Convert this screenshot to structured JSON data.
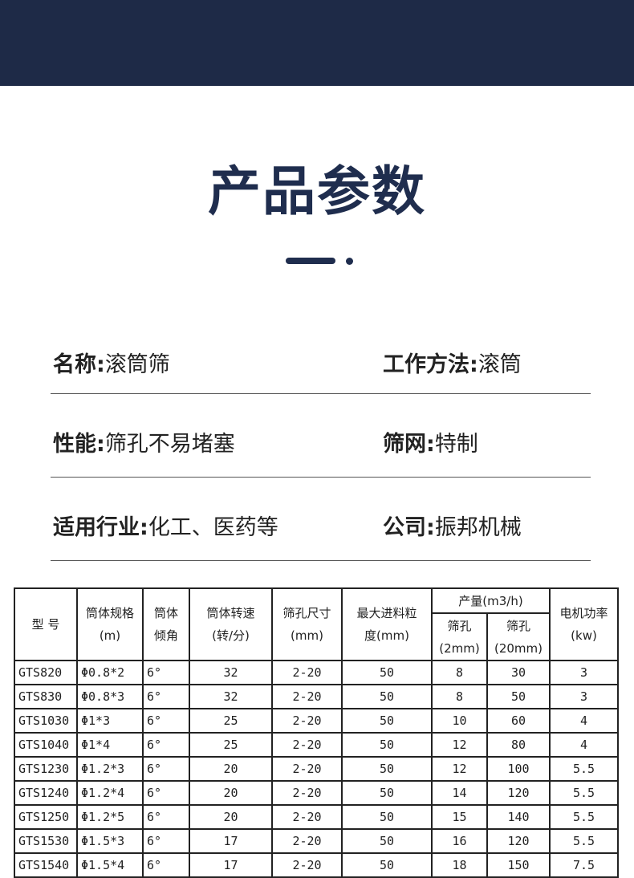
{
  "title": "产品参数",
  "info": [
    {
      "label": "名称:",
      "value": "滚筒筛"
    },
    {
      "label": "工作方法:",
      "value": "滚筒"
    },
    {
      "label": "性能:",
      "value": "筛孔不易堵塞"
    },
    {
      "label": "筛网:",
      "value": "特制"
    },
    {
      "label": "适用行业:",
      "value": "化工、医药等"
    },
    {
      "label": "公司:",
      "value": "振邦机械"
    }
  ],
  "table": {
    "headers": {
      "model": "型 号",
      "spec1": "筒体规格",
      "spec2": "(m)",
      "angle1": "筒体",
      "angle2": "倾角",
      "speed1": "筒体转速",
      "speed2": "(转/分)",
      "hole1": "筛孔尺寸",
      "hole2": "(mm)",
      "feed1": "最大进料粒",
      "feed2": "度(mm)",
      "output": "产量(m3/h)",
      "o1a": "筛孔",
      "o1b": "(2mm)",
      "o2a": "筛孔",
      "o2b": "(20mm)",
      "power1": "电机功率",
      "power2": "(kw)"
    },
    "rows": [
      [
        "GTS820",
        "Φ0.8*2",
        "6°",
        "32",
        "2-20",
        "50",
        "8",
        "30",
        "3"
      ],
      [
        "GTS830",
        "Φ0.8*3",
        "6°",
        "32",
        "2-20",
        "50",
        "8",
        "50",
        "3"
      ],
      [
        "GTS1030",
        "Φ1*3",
        "6°",
        "25",
        "2-20",
        "50",
        "10",
        "60",
        "4"
      ],
      [
        "GTS1040",
        "Φ1*4",
        "6°",
        "25",
        "2-20",
        "50",
        "12",
        "80",
        "4"
      ],
      [
        "GTS1230",
        "Φ1.2*3",
        "6°",
        "20",
        "2-20",
        "50",
        "12",
        "100",
        "5.5"
      ],
      [
        "GTS1240",
        "Φ1.2*4",
        "6°",
        "20",
        "2-20",
        "50",
        "14",
        "120",
        "5.5"
      ],
      [
        "GTS1250",
        "Φ1.2*5",
        "6°",
        "20",
        "2-20",
        "50",
        "15",
        "140",
        "5.5"
      ],
      [
        "GTS1530",
        "Φ1.5*3",
        "6°",
        "17",
        "2-20",
        "50",
        "16",
        "120",
        "5.5"
      ],
      [
        "GTS1540",
        "Φ1.5*4",
        "6°",
        "17",
        "2-20",
        "50",
        "18",
        "150",
        "7.5"
      ]
    ]
  }
}
